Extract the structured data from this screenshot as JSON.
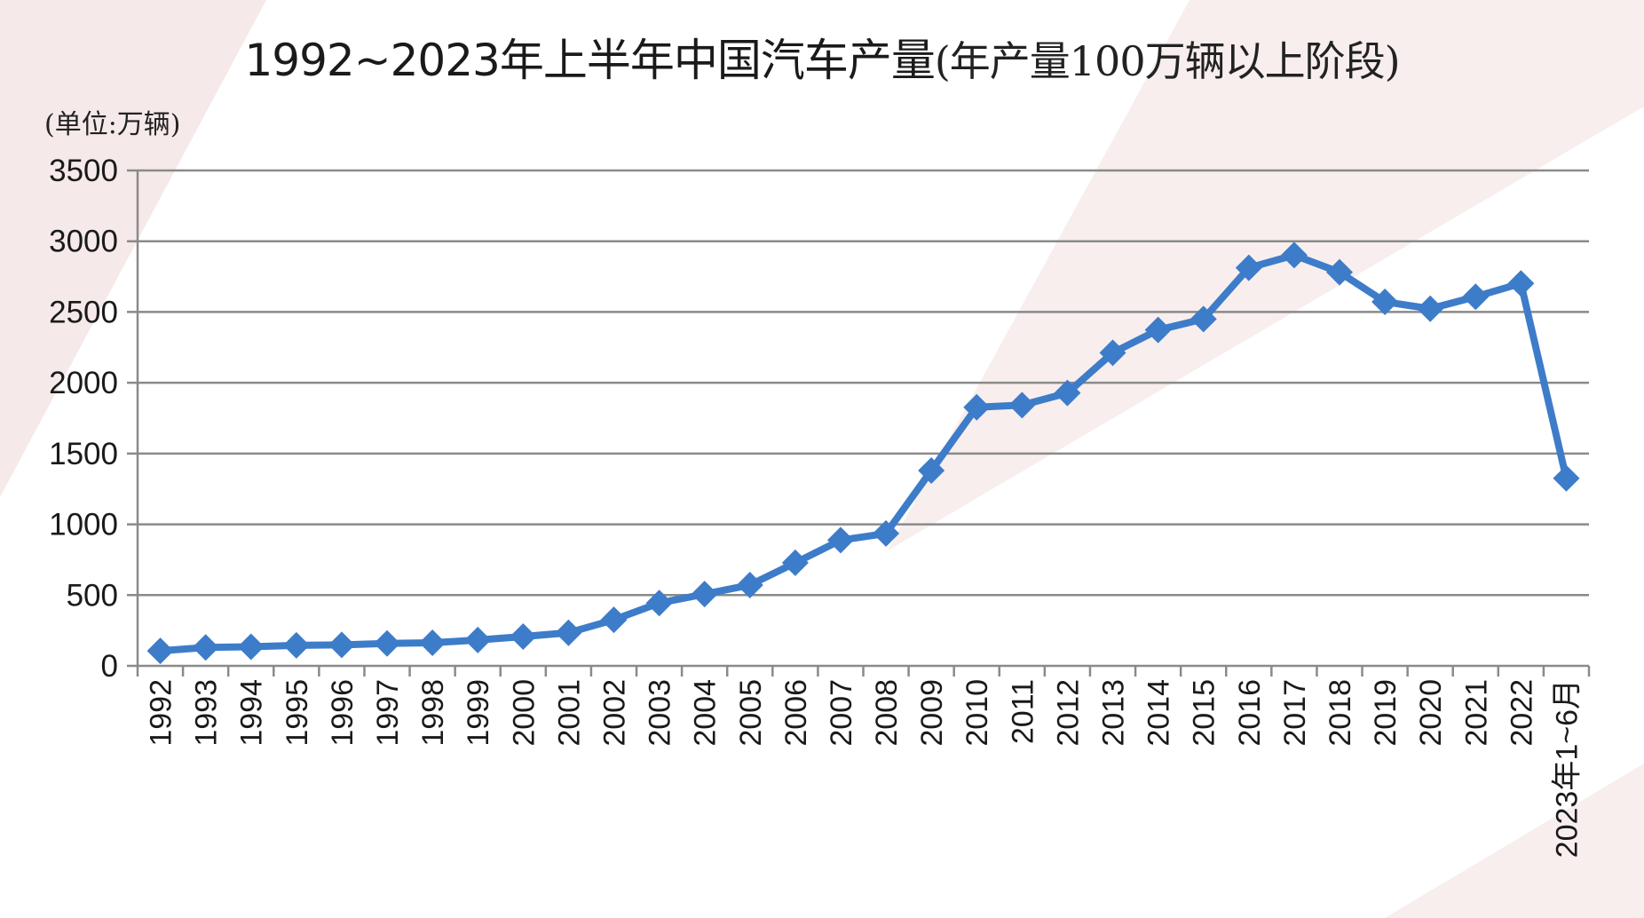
{
  "title": "1992~2023年上半年中国汽车产量",
  "subtitle": "(年产量100万辆以上阶段)",
  "unit_label": "(单位:万辆)",
  "colors": {
    "line": "#3d7cc9",
    "grid": "#8a8a8a",
    "axis": "#8a8a8a",
    "bg_accent": "#f5e6e6"
  },
  "chart_data": {
    "type": "line",
    "title": "1992~2023年上半年中国汽车产量(年产量100万辆以上阶段)",
    "ylabel": "(单位:万辆)",
    "ylim": [
      0,
      3500
    ],
    "yticks": [
      0,
      500,
      1000,
      1500,
      2000,
      2500,
      3000,
      3500
    ],
    "grid": true,
    "categories": [
      "1992",
      "1993",
      "1994",
      "1995",
      "1996",
      "1997",
      "1998",
      "1999",
      "2000",
      "2001",
      "2002",
      "2003",
      "2004",
      "2005",
      "2006",
      "2007",
      "2008",
      "2009",
      "2010",
      "2011",
      "2012",
      "2013",
      "2014",
      "2015",
      "2016",
      "2017",
      "2018",
      "2019",
      "2020",
      "2021",
      "2022",
      "2023年1~6月"
    ],
    "series": [
      {
        "values": [
          106,
          130,
          135,
          145,
          148,
          158,
          163,
          183,
          207,
          234,
          325,
          444,
          507,
          571,
          728,
          888,
          935,
          1380,
          1827,
          1842,
          1928,
          2212,
          2373,
          2450,
          2812,
          2902,
          2781,
          2572,
          2523,
          2608,
          2702,
          1325
        ]
      }
    ]
  }
}
